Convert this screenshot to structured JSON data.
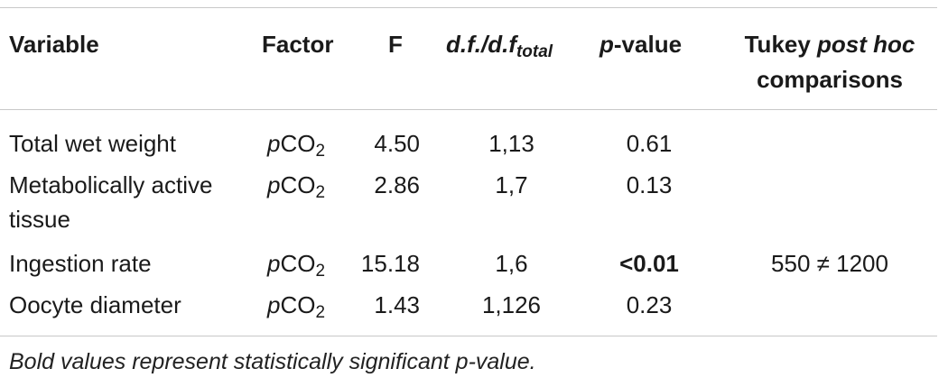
{
  "table": {
    "headers": {
      "variable": "Variable",
      "factor": "Factor",
      "f": "F",
      "df": "d.f./d.f",
      "df_sub": "total",
      "p_prefix": "p",
      "p_suffix": "-value",
      "tukey_line1_a": "Tukey ",
      "tukey_line1_b": "post hoc",
      "tukey_line2": "comparisons"
    },
    "rows": [
      {
        "variable": "Total wet weight",
        "factor_p": "p",
        "factor_co": "CO",
        "factor_sub": "2",
        "f": "4.50",
        "df": "1,13",
        "p_value": "0.61",
        "tukey": ""
      },
      {
        "variable_line1": "Metabolically active",
        "variable_line2": "tissue",
        "factor_p": "p",
        "factor_co": "CO",
        "factor_sub": "2",
        "f": "2.86",
        "df": "1,7",
        "p_value": "0.13",
        "tukey": ""
      },
      {
        "variable": "Ingestion rate",
        "factor_p": "p",
        "factor_co": "CO",
        "factor_sub": "2",
        "f": "15.18",
        "df": "1,6",
        "p_value": "<0.01",
        "tukey": "550 ≠ 1200"
      },
      {
        "variable": "Oocyte diameter",
        "factor_p": "p",
        "factor_co": "CO",
        "factor_sub": "2",
        "f": "1.43",
        "df": "1,126",
        "p_value": "0.23",
        "tukey": ""
      }
    ],
    "footnote": "Bold values represent statistically significant p-value."
  }
}
